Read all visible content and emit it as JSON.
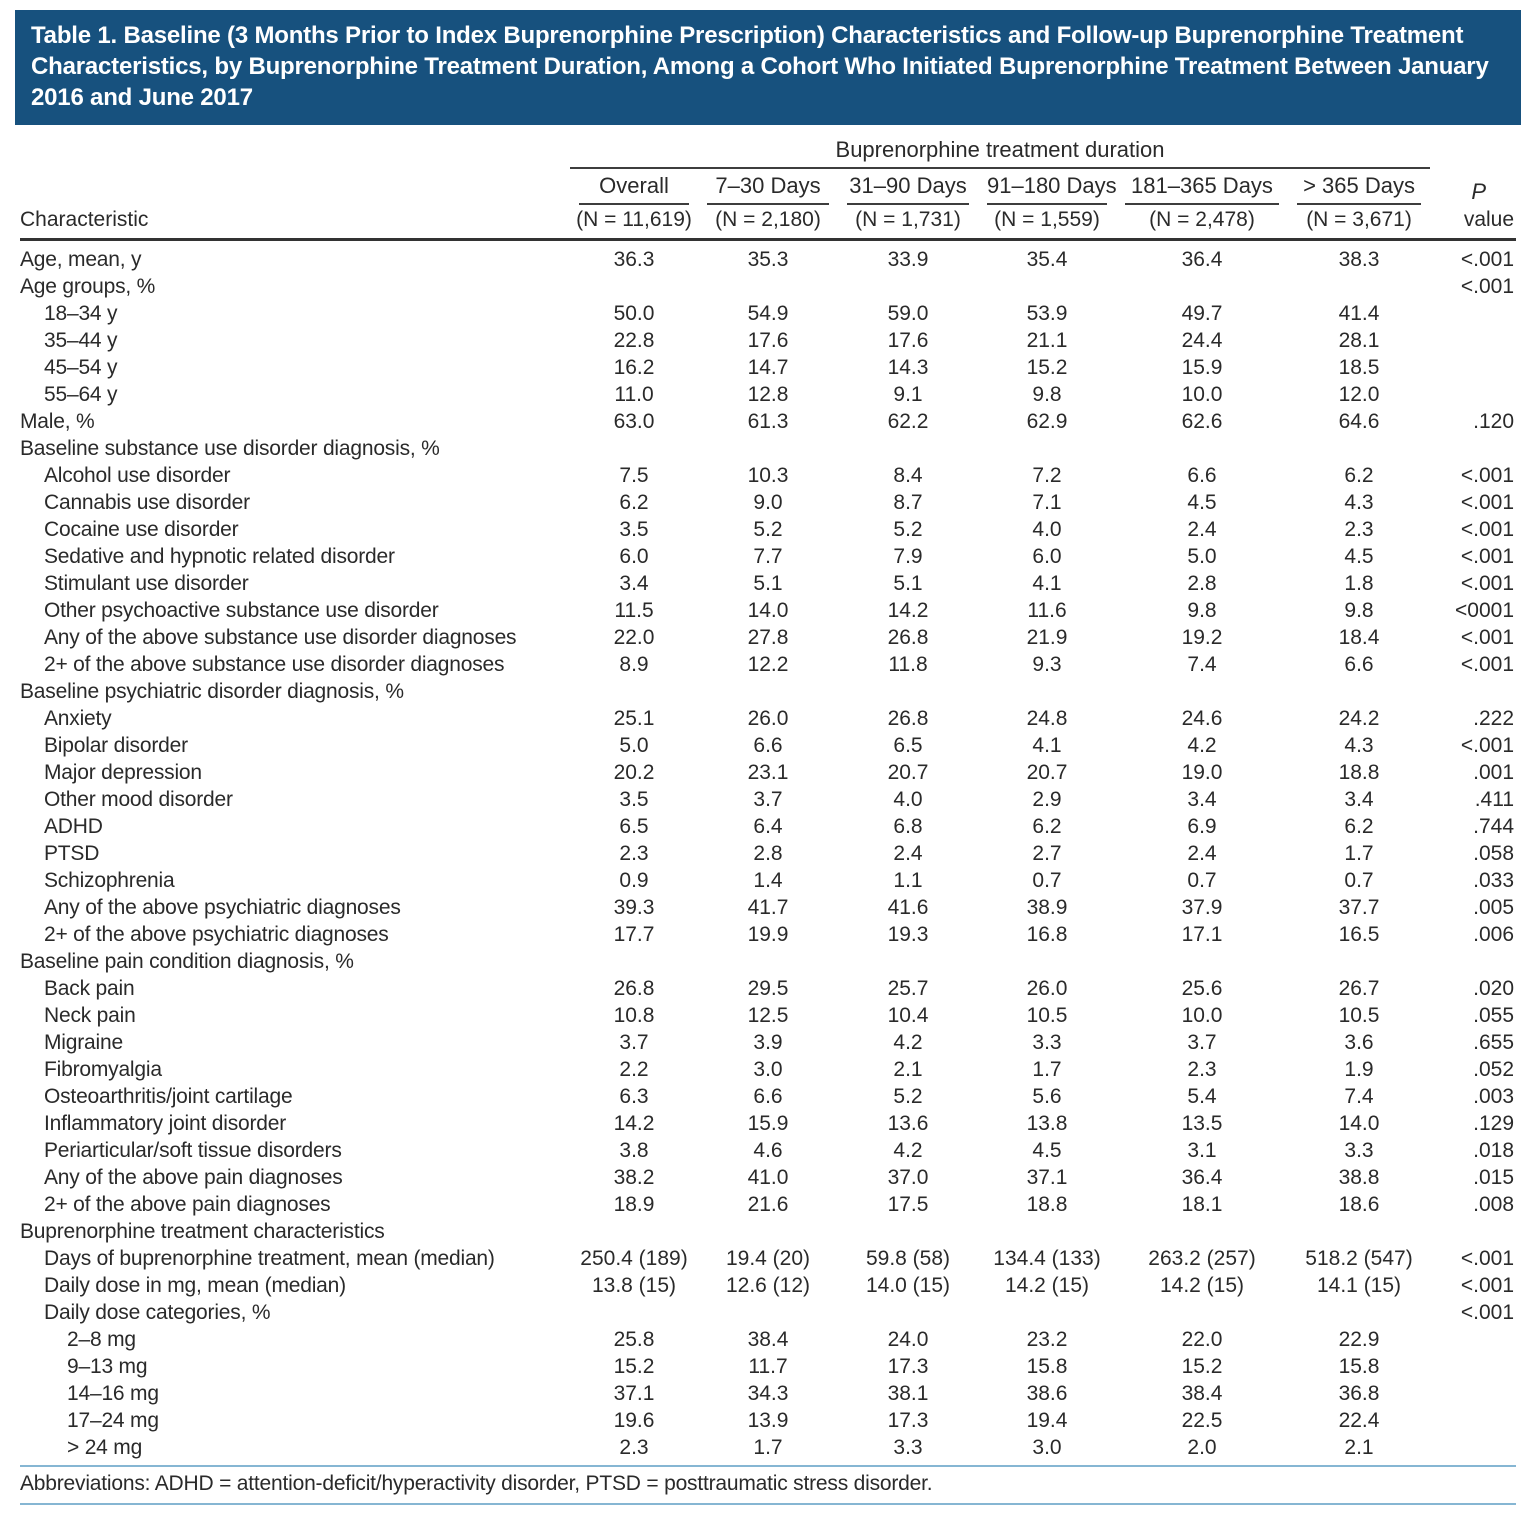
{
  "title": "Table 1. Baseline (3 Months Prior to Index Buprenorphine Prescription) Characteristics and Follow-up Buprenorphine Treatment Characteristics, by Buprenorphine Treatment Duration, Among a Cohort Who Initiated Buprenorphine Treatment Between January 2016 and June 2017",
  "table": {
    "spanner": "Buprenorphine treatment duration",
    "row_header": "Characteristic",
    "p_header": {
      "line1": "P",
      "line2": "value"
    },
    "columns": [
      {
        "label": "Overall",
        "n": "(N = 11,619)"
      },
      {
        "label": "7–30 Days",
        "n": "(N = 2,180)"
      },
      {
        "label": "31–90 Days",
        "n": "(N = 1,731)"
      },
      {
        "label": "91–180 Days",
        "n": "(N = 1,559)"
      },
      {
        "label": "181–365 Days",
        "n": "(N = 2,478)"
      },
      {
        "label": "> 365 Days",
        "n": "(N = 3,671)"
      }
    ],
    "rows": [
      {
        "label": "Age, mean, y",
        "indent": 0,
        "v": [
          "36.3",
          "35.3",
          "33.9",
          "35.4",
          "36.4",
          "38.3"
        ],
        "p": "<.001"
      },
      {
        "label": "Age groups, %",
        "indent": 0,
        "v": [
          "",
          "",
          "",
          "",
          "",
          ""
        ],
        "p": "<.001"
      },
      {
        "label": "18–34 y",
        "indent": 1,
        "v": [
          "50.0",
          "54.9",
          "59.0",
          "53.9",
          "49.7",
          "41.4"
        ],
        "p": ""
      },
      {
        "label": "35–44 y",
        "indent": 1,
        "v": [
          "22.8",
          "17.6",
          "17.6",
          "21.1",
          "24.4",
          "28.1"
        ],
        "p": ""
      },
      {
        "label": "45–54 y",
        "indent": 1,
        "v": [
          "16.2",
          "14.7",
          "14.3",
          "15.2",
          "15.9",
          "18.5"
        ],
        "p": ""
      },
      {
        "label": "55–64 y",
        "indent": 1,
        "v": [
          "11.0",
          "12.8",
          "9.1",
          "9.8",
          "10.0",
          "12.0"
        ],
        "p": ""
      },
      {
        "label": "Male, %",
        "indent": 0,
        "v": [
          "63.0",
          "61.3",
          "62.2",
          "62.9",
          "62.6",
          "64.6"
        ],
        "p": ".120"
      },
      {
        "label": "Baseline substance use disorder diagnosis, %",
        "indent": 0,
        "v": [
          "",
          "",
          "",
          "",
          "",
          ""
        ],
        "p": ""
      },
      {
        "label": "Alcohol use disorder",
        "indent": 1,
        "v": [
          "7.5",
          "10.3",
          "8.4",
          "7.2",
          "6.6",
          "6.2"
        ],
        "p": "<.001"
      },
      {
        "label": "Cannabis use disorder",
        "indent": 1,
        "v": [
          "6.2",
          "9.0",
          "8.7",
          "7.1",
          "4.5",
          "4.3"
        ],
        "p": "<.001"
      },
      {
        "label": "Cocaine use disorder",
        "indent": 1,
        "v": [
          "3.5",
          "5.2",
          "5.2",
          "4.0",
          "2.4",
          "2.3"
        ],
        "p": "<.001"
      },
      {
        "label": "Sedative and hypnotic related disorder",
        "indent": 1,
        "v": [
          "6.0",
          "7.7",
          "7.9",
          "6.0",
          "5.0",
          "4.5"
        ],
        "p": "<.001"
      },
      {
        "label": "Stimulant use disorder",
        "indent": 1,
        "v": [
          "3.4",
          "5.1",
          "5.1",
          "4.1",
          "2.8",
          "1.8"
        ],
        "p": "<.001"
      },
      {
        "label": "Other psychoactive substance use disorder",
        "indent": 1,
        "v": [
          "11.5",
          "14.0",
          "14.2",
          "11.6",
          "9.8",
          "9.8"
        ],
        "p": "<0001"
      },
      {
        "label": "Any of the above substance use disorder diagnoses",
        "indent": 1,
        "v": [
          "22.0",
          "27.8",
          "26.8",
          "21.9",
          "19.2",
          "18.4"
        ],
        "p": "<.001"
      },
      {
        "label": "2+ of the above substance use disorder diagnoses",
        "indent": 1,
        "v": [
          "8.9",
          "12.2",
          "11.8",
          "9.3",
          "7.4",
          "6.6"
        ],
        "p": "<.001"
      },
      {
        "label": "Baseline psychiatric disorder diagnosis, %",
        "indent": 0,
        "v": [
          "",
          "",
          "",
          "",
          "",
          ""
        ],
        "p": ""
      },
      {
        "label": "Anxiety",
        "indent": 1,
        "v": [
          "25.1",
          "26.0",
          "26.8",
          "24.8",
          "24.6",
          "24.2"
        ],
        "p": ".222"
      },
      {
        "label": "Bipolar disorder",
        "indent": 1,
        "v": [
          "5.0",
          "6.6",
          "6.5",
          "4.1",
          "4.2",
          "4.3"
        ],
        "p": "<.001"
      },
      {
        "label": "Major depression",
        "indent": 1,
        "v": [
          "20.2",
          "23.1",
          "20.7",
          "20.7",
          "19.0",
          "18.8"
        ],
        "p": ".001"
      },
      {
        "label": "Other mood disorder",
        "indent": 1,
        "v": [
          "3.5",
          "3.7",
          "4.0",
          "2.9",
          "3.4",
          "3.4"
        ],
        "p": ".411"
      },
      {
        "label": "ADHD",
        "indent": 1,
        "v": [
          "6.5",
          "6.4",
          "6.8",
          "6.2",
          "6.9",
          "6.2"
        ],
        "p": ".744"
      },
      {
        "label": "PTSD",
        "indent": 1,
        "v": [
          "2.3",
          "2.8",
          "2.4",
          "2.7",
          "2.4",
          "1.7"
        ],
        "p": ".058"
      },
      {
        "label": "Schizophrenia",
        "indent": 1,
        "v": [
          "0.9",
          "1.4",
          "1.1",
          "0.7",
          "0.7",
          "0.7"
        ],
        "p": ".033"
      },
      {
        "label": "Any of the above psychiatric diagnoses",
        "indent": 1,
        "v": [
          "39.3",
          "41.7",
          "41.6",
          "38.9",
          "37.9",
          "37.7"
        ],
        "p": ".005"
      },
      {
        "label": "2+ of the above psychiatric diagnoses",
        "indent": 1,
        "v": [
          "17.7",
          "19.9",
          "19.3",
          "16.8",
          "17.1",
          "16.5"
        ],
        "p": ".006"
      },
      {
        "label": "Baseline pain condition diagnosis, %",
        "indent": 0,
        "v": [
          "",
          "",
          "",
          "",
          "",
          ""
        ],
        "p": ""
      },
      {
        "label": "Back pain",
        "indent": 1,
        "v": [
          "26.8",
          "29.5",
          "25.7",
          "26.0",
          "25.6",
          "26.7"
        ],
        "p": ".020"
      },
      {
        "label": "Neck pain",
        "indent": 1,
        "v": [
          "10.8",
          "12.5",
          "10.4",
          "10.5",
          "10.0",
          "10.5"
        ],
        "p": ".055"
      },
      {
        "label": "Migraine",
        "indent": 1,
        "v": [
          "3.7",
          "3.9",
          "4.2",
          "3.3",
          "3.7",
          "3.6"
        ],
        "p": ".655"
      },
      {
        "label": "Fibromyalgia",
        "indent": 1,
        "v": [
          "2.2",
          "3.0",
          "2.1",
          "1.7",
          "2.3",
          "1.9"
        ],
        "p": ".052"
      },
      {
        "label": "Osteoarthritis/joint cartilage",
        "indent": 1,
        "v": [
          "6.3",
          "6.6",
          "5.2",
          "5.6",
          "5.4",
          "7.4"
        ],
        "p": ".003"
      },
      {
        "label": "Inflammatory joint disorder",
        "indent": 1,
        "v": [
          "14.2",
          "15.9",
          "13.6",
          "13.8",
          "13.5",
          "14.0"
        ],
        "p": ".129"
      },
      {
        "label": "Periarticular/soft tissue disorders",
        "indent": 1,
        "v": [
          "3.8",
          "4.6",
          "4.2",
          "4.5",
          "3.1",
          "3.3"
        ],
        "p": ".018"
      },
      {
        "label": "Any of the above pain diagnoses",
        "indent": 1,
        "v": [
          "38.2",
          "41.0",
          "37.0",
          "37.1",
          "36.4",
          "38.8"
        ],
        "p": ".015"
      },
      {
        "label": "2+ of the above pain diagnoses",
        "indent": 1,
        "v": [
          "18.9",
          "21.6",
          "17.5",
          "18.8",
          "18.1",
          "18.6"
        ],
        "p": ".008"
      },
      {
        "label": "Buprenorphine treatment characteristics",
        "indent": 0,
        "v": [
          "",
          "",
          "",
          "",
          "",
          ""
        ],
        "p": ""
      },
      {
        "label": "Days of buprenorphine treatment, mean (median)",
        "indent": 1,
        "v": [
          "250.4 (189)",
          "19.4 (20)",
          "59.8 (58)",
          "134.4 (133)",
          "263.2 (257)",
          "518.2 (547)"
        ],
        "p": "<.001"
      },
      {
        "label": "Daily dose in mg, mean (median)",
        "indent": 1,
        "v": [
          "13.8 (15)",
          "12.6 (12)",
          "14.0 (15)",
          "14.2 (15)",
          "14.2 (15)",
          "14.1 (15)"
        ],
        "p": "<.001"
      },
      {
        "label": "Daily dose categories, %",
        "indent": 1,
        "v": [
          "",
          "",
          "",
          "",
          "",
          ""
        ],
        "p": "<.001"
      },
      {
        "label": "2–8 mg",
        "indent": 2,
        "v": [
          "25.8",
          "38.4",
          "24.0",
          "23.2",
          "22.0",
          "22.9"
        ],
        "p": ""
      },
      {
        "label": "9–13 mg",
        "indent": 2,
        "v": [
          "15.2",
          "11.7",
          "17.3",
          "15.8",
          "15.2",
          "15.8"
        ],
        "p": ""
      },
      {
        "label": "14–16 mg",
        "indent": 2,
        "v": [
          "37.1",
          "34.3",
          "38.1",
          "38.6",
          "38.4",
          "36.8"
        ],
        "p": ""
      },
      {
        "label": "17–24 mg",
        "indent": 2,
        "v": [
          "19.6",
          "13.9",
          "17.3",
          "19.4",
          "22.5",
          "22.4"
        ],
        "p": ""
      },
      {
        "label": "> 24 mg",
        "indent": 2,
        "v": [
          "2.3",
          "1.7",
          "3.3",
          "3.0",
          "2.0",
          "2.1"
        ],
        "p": ""
      }
    ]
  },
  "footnote": "Abbreviations: ADHD = attention-deficit/hyperactivity disorder, PTSD = posttraumatic stress disorder.",
  "colors": {
    "title_bar": "#17517e",
    "title_text": "#ffffff",
    "text": "#2a2a2a",
    "rule_dark": "#3d3d3d",
    "rule_heavy": "#333333",
    "rule_blue": "#1d5c8f",
    "rule_blue_light": "#86b6d3",
    "background": "#ffffff"
  }
}
